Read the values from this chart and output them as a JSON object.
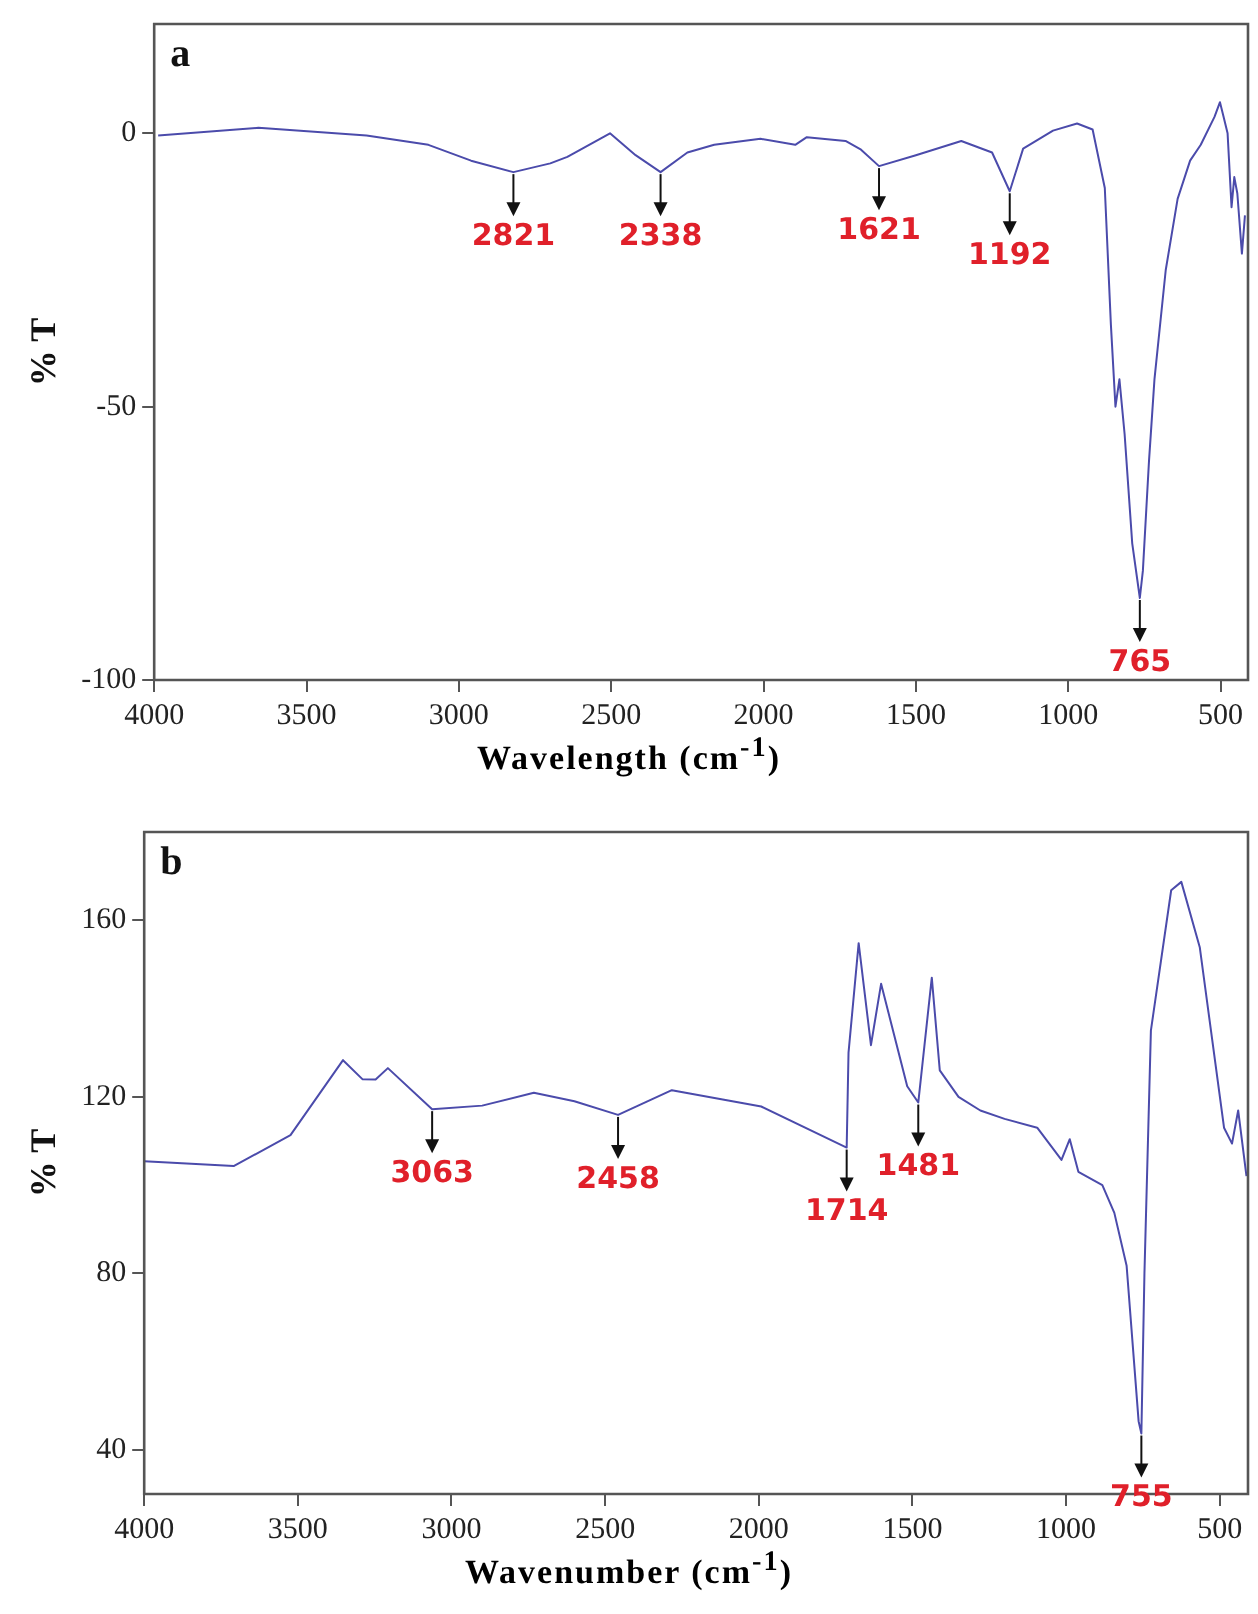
{
  "chart_data": [
    {
      "type": "line",
      "title": "a",
      "xlabel": "Wavelength (cm$^{-1}$)",
      "ylabel": "% T",
      "color": "#4b4bab",
      "grid": false,
      "legend": false,
      "marker": "none",
      "line_style": "solid",
      "xlim": [
        4000,
        410
      ],
      "ylim": [
        -100,
        20
      ],
      "xticks": [
        4000,
        3500,
        3000,
        2500,
        2000,
        1500,
        1000,
        500
      ],
      "yticks": [
        0,
        -50,
        -100
      ],
      "x": [
        3987,
        3658,
        3303,
        3100,
        2960,
        2821,
        2700,
        2644,
        2504,
        2420,
        2338,
        2250,
        2162,
        2010,
        1896,
        1858,
        1731,
        1680,
        1621,
        1500,
        1351,
        1250,
        1192,
        1148,
        1050,
        971,
        920,
        880,
        860,
        845,
        832,
        815,
        790,
        765,
        755,
        735,
        717,
        680,
        641,
        600,
        565,
        520,
        502,
        490,
        477,
        464,
        455,
        445,
        430,
        420
      ],
      "values": [
        -0.4,
        1.0,
        -0.4,
        -2.1,
        -5,
        -7.1,
        -5.5,
        -4.3,
        0,
        -4,
        -7.1,
        -3.5,
        -2.1,
        -1.0,
        -2.1,
        -0.7,
        -1.4,
        -3,
        -6,
        -4,
        -1.4,
        -3.5,
        -10.6,
        -2.8,
        0.5,
        1.8,
        0.7,
        -10,
        -35,
        -50,
        -45,
        -55,
        -75,
        -85,
        -80,
        -60,
        -45,
        -25,
        -12,
        -5,
        -2.1,
        3,
        5.7,
        3,
        0,
        -13.5,
        -8,
        -11,
        -22,
        -15
      ],
      "annotations": [
        {
          "text": "2821",
          "x": 2821,
          "y": -7.1
        },
        {
          "text": "2338",
          "x": 2338,
          "y": -7.1
        },
        {
          "text": "1621",
          "x": 1621,
          "y": -6
        },
        {
          "text": "1192",
          "x": 1192,
          "y": -10.6
        },
        {
          "text": "765",
          "x": 765,
          "y": -85
        }
      ]
    },
    {
      "type": "line",
      "title": "b",
      "xlabel": "Wavenumber (cm$^{-1}$)",
      "ylabel": "% T",
      "color": "#4b4bab",
      "grid": false,
      "legend": false,
      "marker": "none",
      "line_style": "solid",
      "xlim": [
        4000,
        408
      ],
      "ylim": [
        30,
        180
      ],
      "xticks": [
        4000,
        3500,
        3000,
        2500,
        2000,
        1500,
        1000,
        500
      ],
      "yticks": [
        40,
        80,
        120,
        160
      ],
      "x": [
        4000,
        3709,
        3524,
        3353,
        3290,
        3247,
        3207,
        3063,
        2900,
        2732,
        2600,
        2458,
        2283,
        1992,
        1714,
        1708,
        1675,
        1635,
        1602,
        1517,
        1481,
        1437,
        1411,
        1350,
        1279,
        1200,
        1094,
        1015,
        988,
        960,
        882,
        843,
        803,
        764,
        755,
        745,
        724,
        658,
        625,
        565,
        486,
        460,
        440,
        413
      ],
      "values": [
        105.4,
        104.3,
        111.3,
        128.3,
        124,
        123.9,
        126.5,
        117.2,
        118,
        120.9,
        119,
        115.9,
        121.5,
        117.8,
        108.5,
        130,
        154.8,
        131.7,
        145.6,
        122.4,
        118.7,
        147,
        126,
        120,
        116.9,
        115,
        113,
        105.7,
        110.4,
        103,
        100,
        93.7,
        81.7,
        46.5,
        43.7,
        80,
        135,
        166.8,
        168.7,
        153.9,
        113,
        109.4,
        116.9,
        102
      ],
      "annotations": [
        {
          "text": "3063",
          "x": 3063,
          "y": 117.2
        },
        {
          "text": "2458",
          "x": 2458,
          "y": 115.9
        },
        {
          "text": "1714",
          "x": 1714,
          "y": 108.5
        },
        {
          "text": "1481",
          "x": 1481,
          "y": 118.7
        },
        {
          "text": "755",
          "x": 755,
          "y": 43.7
        }
      ]
    }
  ]
}
